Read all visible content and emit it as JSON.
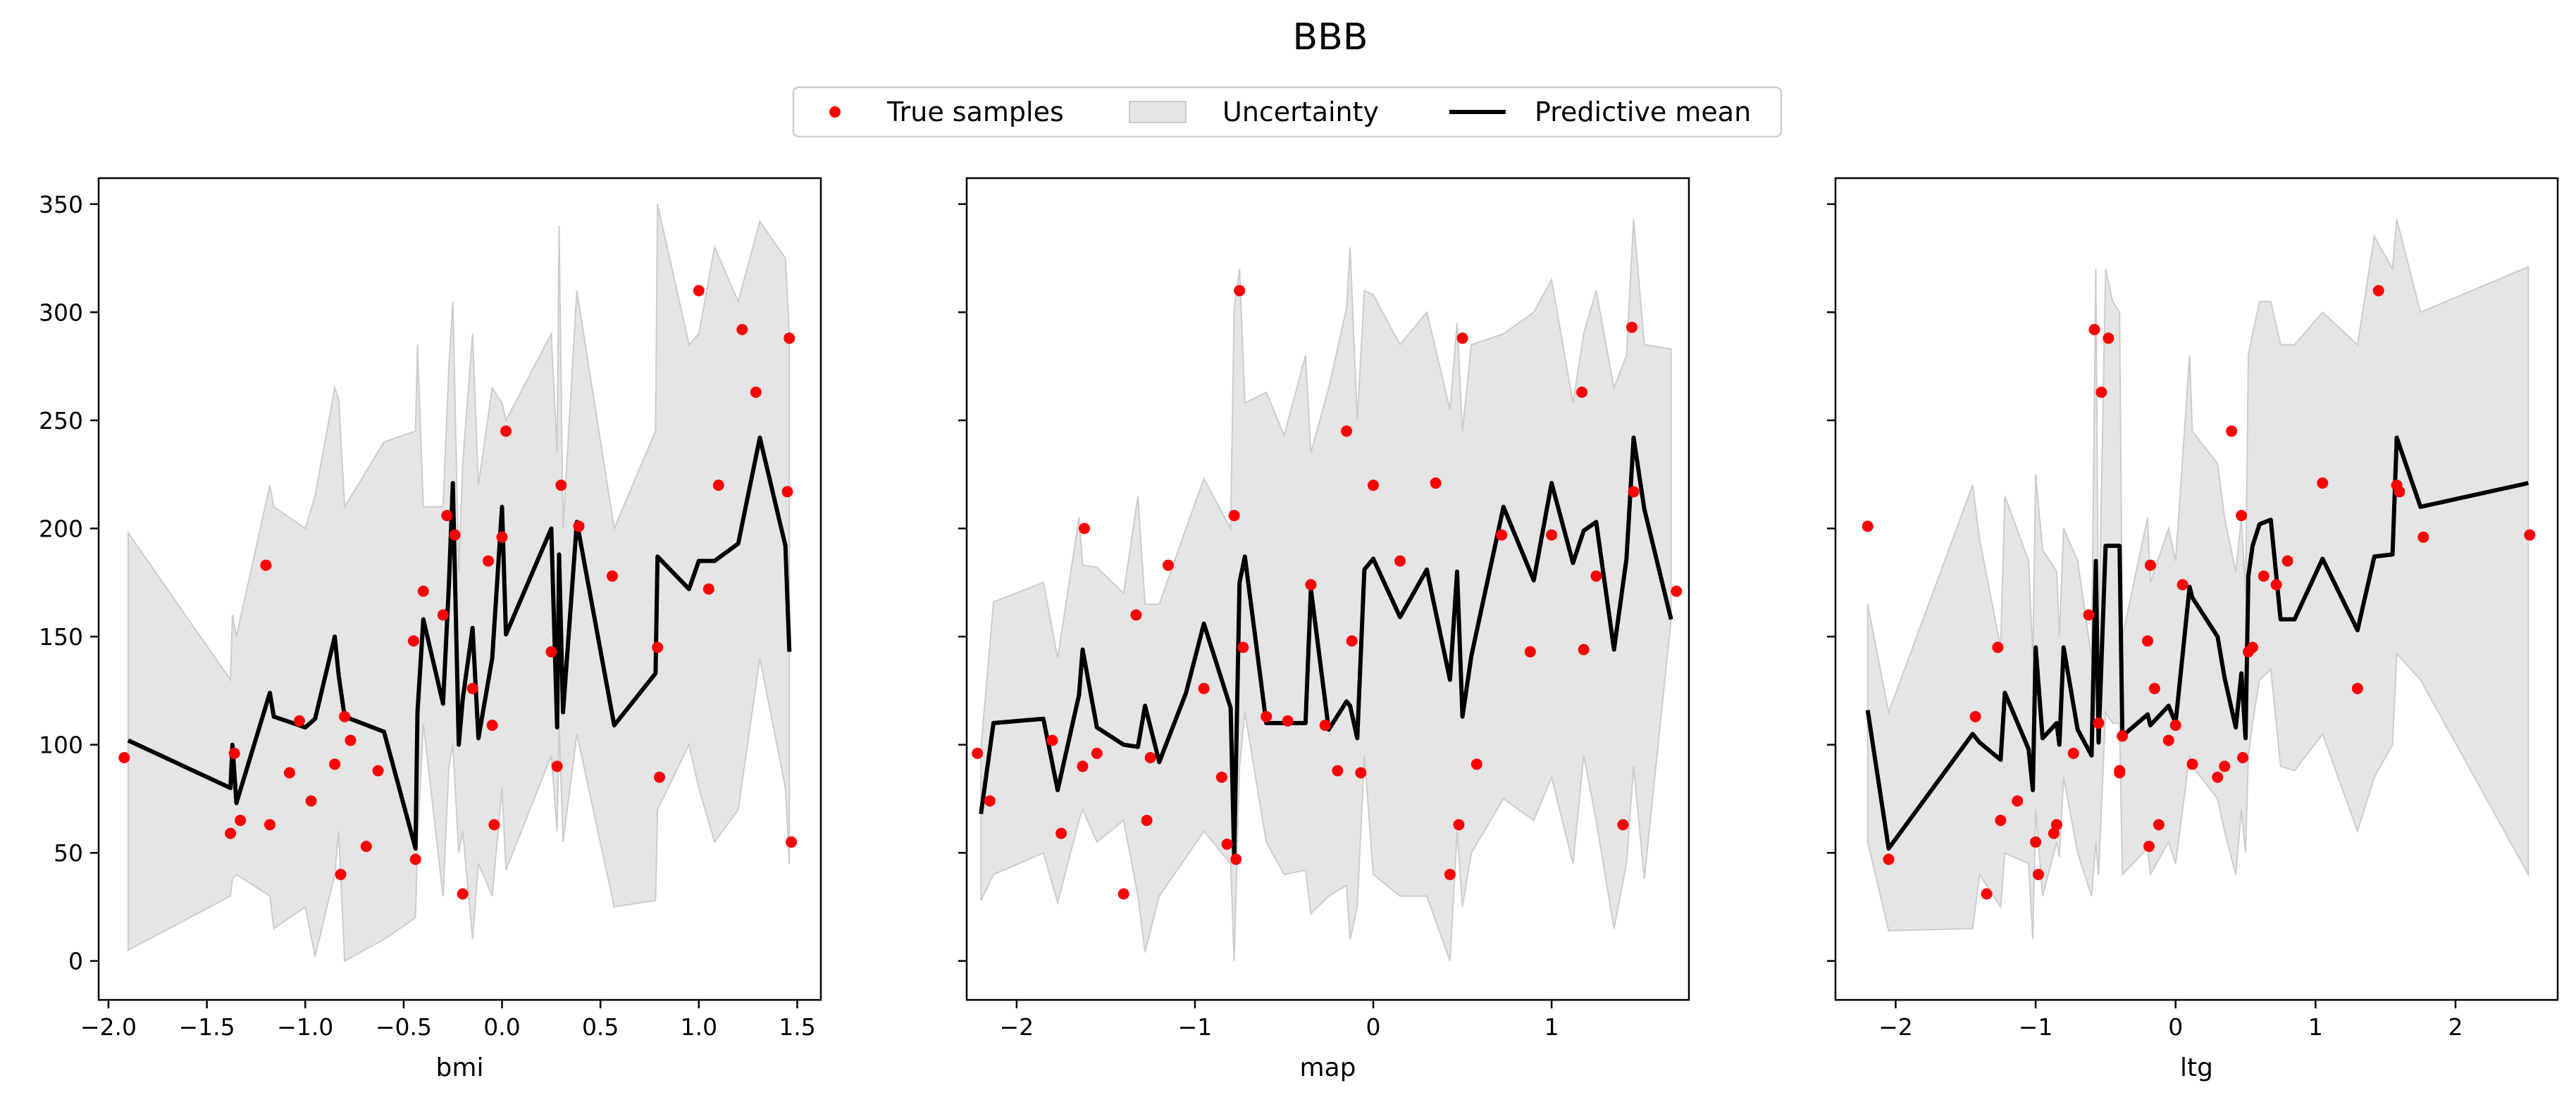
{
  "title": "BBB",
  "legend": {
    "items": [
      "True samples",
      "Uncertainty",
      "Predictive mean"
    ],
    "location": "upper-center"
  },
  "colors": {
    "samples": "#ff0000",
    "band_fill": "#e5e5e5",
    "band_edge": "#cccccc",
    "mean": "#000000"
  },
  "chart_data": [
    {
      "type": "line",
      "xlabel": "bmi",
      "xlim": [
        -2.05,
        1.62
      ],
      "ylim": [
        -18,
        362
      ],
      "xticks": [
        -2.0,
        -1.5,
        -1.0,
        -0.5,
        0.0,
        0.5,
        1.0,
        1.5
      ],
      "xtick_labels": [
        "−2.0",
        "−1.5",
        "−1.0",
        "−0.5",
        "0.0",
        "0.5",
        "1.0",
        "1.5"
      ],
      "yticks": [
        0,
        50,
        100,
        150,
        200,
        250,
        300,
        350
      ],
      "ytick_labels": [
        "0",
        "50",
        "100",
        "150",
        "200",
        "250",
        "300",
        "350"
      ],
      "series": [
        {
          "name": "Predictive mean",
          "x": [
            -1.9,
            -1.38,
            -1.37,
            -1.35,
            -1.18,
            -1.16,
            -1.0,
            -0.95,
            -0.85,
            -0.83,
            -0.8,
            -0.6,
            -0.44,
            -0.43,
            -0.4,
            -0.3,
            -0.27,
            -0.25,
            -0.22,
            -0.2,
            -0.15,
            -0.12,
            -0.05,
            0.0,
            0.02,
            0.25,
            0.28,
            0.29,
            0.31,
            0.38,
            0.57,
            0.78,
            0.79,
            0.95,
            1.0,
            1.08,
            1.2,
            1.31,
            1.44,
            1.46
          ],
          "y": [
            102,
            80,
            100,
            73,
            124,
            113,
            108,
            112,
            150,
            132,
            113,
            106,
            52,
            115,
            158,
            119,
            174,
            221,
            100,
            121,
            154,
            103,
            140,
            210,
            151,
            200,
            108,
            188,
            115,
            203,
            109,
            133,
            187,
            172,
            185,
            185,
            193,
            242,
            192,
            143
          ]
        },
        {
          "name": "Uncertainty",
          "x": [
            -1.9,
            -1.38,
            -1.37,
            -1.35,
            -1.18,
            -1.16,
            -1.0,
            -0.95,
            -0.85,
            -0.83,
            -0.8,
            -0.6,
            -0.44,
            -0.43,
            -0.4,
            -0.3,
            -0.27,
            -0.25,
            -0.22,
            -0.2,
            -0.15,
            -0.12,
            -0.05,
            0.0,
            0.02,
            0.25,
            0.28,
            0.29,
            0.31,
            0.38,
            0.57,
            0.78,
            0.79,
            0.95,
            1.0,
            1.08,
            1.2,
            1.31,
            1.44,
            1.46
          ],
          "lower": [
            5,
            30,
            38,
            40,
            30,
            15,
            25,
            2,
            40,
            60,
            0,
            10,
            20,
            55,
            110,
            30,
            90,
            100,
            50,
            60,
            10,
            45,
            30,
            80,
            42,
            95,
            60,
            110,
            55,
            105,
            25,
            28,
            70,
            100,
            80,
            55,
            70,
            140,
            80,
            45
          ],
          "upper": [
            198,
            130,
            160,
            150,
            220,
            210,
            200,
            215,
            265,
            260,
            210,
            240,
            245,
            285,
            210,
            210,
            275,
            305,
            180,
            230,
            290,
            220,
            265,
            258,
            250,
            290,
            235,
            340,
            200,
            310,
            200,
            245,
            350,
            285,
            290,
            330,
            305,
            342,
            325,
            290
          ]
        },
        {
          "name": "True samples",
          "x": [
            -1.92,
            -1.38,
            -1.36,
            -1.33,
            -1.2,
            -1.18,
            -1.08,
            -1.03,
            -0.97,
            -0.85,
            -0.82,
            -0.8,
            -0.77,
            -0.69,
            -0.63,
            -0.45,
            -0.44,
            -0.4,
            -0.3,
            -0.28,
            -0.24,
            -0.2,
            -0.15,
            -0.07,
            -0.05,
            -0.04,
            0.0,
            0.02,
            0.25,
            0.28,
            0.3,
            0.39,
            0.56,
            0.79,
            0.8,
            1.0,
            1.05,
            1.1,
            1.22,
            1.29,
            1.45,
            1.46,
            1.47
          ],
          "y": [
            94,
            59,
            96,
            65,
            183,
            63,
            87,
            111,
            74,
            91,
            40,
            113,
            102,
            53,
            88,
            148,
            47,
            171,
            160,
            206,
            197,
            31,
            126,
            185,
            109,
            63,
            196,
            245,
            143,
            90,
            220,
            201,
            178,
            145,
            85,
            310,
            172,
            220,
            292,
            263,
            217,
            288,
            55
          ]
        }
      ]
    },
    {
      "type": "line",
      "xlabel": "map",
      "xlim": [
        -2.28,
        1.77
      ],
      "ylim": [
        -18,
        362
      ],
      "xticks": [
        -2,
        -1,
        0,
        1
      ],
      "xtick_labels": [
        "−2",
        "−1",
        "0",
        "1"
      ],
      "yticks": [
        0,
        50,
        100,
        150,
        200,
        250,
        300,
        350
      ],
      "ytick_labels": [
        "",
        "",
        "",
        "",
        "",
        "",
        "",
        ""
      ],
      "series": [
        {
          "name": "Predictive mean",
          "x": [
            -2.2,
            -2.13,
            -1.85,
            -1.77,
            -1.65,
            -1.63,
            -1.55,
            -1.4,
            -1.32,
            -1.28,
            -1.2,
            -1.05,
            -0.95,
            -0.8,
            -0.78,
            -0.75,
            -0.72,
            -0.6,
            -0.5,
            -0.38,
            -0.35,
            -0.25,
            -0.15,
            -0.13,
            -0.09,
            -0.05,
            0.0,
            0.15,
            0.3,
            0.43,
            0.47,
            0.5,
            0.55,
            0.73,
            0.9,
            1.0,
            1.12,
            1.18,
            1.25,
            1.35,
            1.42,
            1.46,
            1.52,
            1.67
          ],
          "y": [
            68,
            110,
            112,
            79,
            123,
            144,
            108,
            100,
            99,
            118,
            92,
            124,
            156,
            117,
            48,
            175,
            187,
            110,
            110,
            110,
            172,
            107,
            120,
            118,
            103,
            181,
            186,
            159,
            181,
            130,
            180,
            113,
            141,
            210,
            176,
            221,
            184,
            199,
            203,
            144,
            186,
            242,
            209,
            158
          ]
        },
        {
          "name": "Uncertainty",
          "x": [
            -2.2,
            -2.13,
            -1.85,
            -1.77,
            -1.65,
            -1.63,
            -1.55,
            -1.4,
            -1.32,
            -1.28,
            -1.2,
            -1.05,
            -0.95,
            -0.8,
            -0.78,
            -0.75,
            -0.72,
            -0.6,
            -0.5,
            -0.38,
            -0.35,
            -0.25,
            -0.15,
            -0.13,
            -0.09,
            -0.05,
            0.0,
            0.15,
            0.3,
            0.43,
            0.47,
            0.5,
            0.55,
            0.73,
            0.9,
            1.0,
            1.12,
            1.18,
            1.25,
            1.35,
            1.42,
            1.46,
            1.52,
            1.67
          ],
          "lower": [
            28,
            40,
            50,
            27,
            65,
            70,
            55,
            65,
            30,
            4,
            30,
            48,
            60,
            45,
            0,
            90,
            115,
            55,
            40,
            42,
            22,
            30,
            35,
            10,
            25,
            95,
            40,
            30,
            30,
            0,
            60,
            25,
            50,
            75,
            65,
            85,
            45,
            95,
            65,
            15,
            45,
            90,
            38,
            158
          ],
          "upper": [
            98,
            166,
            175,
            140,
            205,
            183,
            182,
            170,
            215,
            165,
            165,
            200,
            223,
            200,
            302,
            320,
            258,
            263,
            243,
            280,
            235,
            265,
            302,
            330,
            250,
            310,
            308,
            285,
            300,
            255,
            295,
            245,
            285,
            290,
            300,
            315,
            258,
            290,
            310,
            265,
            280,
            343,
            285,
            283
          ]
        },
        {
          "name": "True samples",
          "x": [
            -2.22,
            -2.15,
            -1.8,
            -1.75,
            -1.63,
            -1.62,
            -1.55,
            -1.4,
            -1.33,
            -1.27,
            -1.25,
            -1.15,
            -0.95,
            -0.85,
            -0.82,
            -0.78,
            -0.77,
            -0.75,
            -0.73,
            -0.6,
            -0.48,
            -0.35,
            -0.27,
            -0.2,
            -0.15,
            -0.12,
            -0.07,
            0.0,
            0.15,
            0.35,
            0.43,
            0.48,
            0.5,
            0.58,
            0.72,
            0.88,
            1.0,
            1.17,
            1.18,
            1.25,
            1.4,
            1.45,
            1.46,
            1.7
          ],
          "y": [
            96,
            74,
            102,
            59,
            90,
            200,
            96,
            31,
            160,
            65,
            94,
            183,
            126,
            85,
            54,
            206,
            47,
            310,
            145,
            113,
            111,
            174,
            109,
            88,
            245,
            148,
            87,
            220,
            185,
            221,
            40,
            63,
            288,
            91,
            197,
            143,
            197,
            263,
            144,
            178,
            63,
            293,
            217,
            171
          ]
        }
      ]
    },
    {
      "type": "line",
      "xlabel": "ltg",
      "xlim": [
        -2.43,
        2.73
      ],
      "ylim": [
        -18,
        362
      ],
      "xticks": [
        -2,
        -1,
        0,
        1,
        2
      ],
      "xtick_labels": [
        "−2",
        "−1",
        "0",
        "1",
        "2"
      ],
      "yticks": [
        0,
        50,
        100,
        150,
        200,
        250,
        300,
        350
      ],
      "ytick_labels": [
        "",
        "",
        "",
        "",
        "",
        "",
        "",
        ""
      ],
      "series": [
        {
          "name": "Predictive mean",
          "x": [
            -2.2,
            -2.05,
            -1.45,
            -1.4,
            -1.25,
            -1.22,
            -1.05,
            -1.02,
            -1.0,
            -0.95,
            -0.85,
            -0.83,
            -0.8,
            -0.7,
            -0.6,
            -0.57,
            -0.55,
            -0.5,
            -0.45,
            -0.4,
            -0.38,
            -0.2,
            -0.18,
            -0.05,
            0.0,
            0.1,
            0.12,
            0.3,
            0.35,
            0.43,
            0.47,
            0.5,
            0.52,
            0.55,
            0.6,
            0.68,
            0.75,
            0.85,
            1.05,
            1.3,
            1.42,
            1.55,
            1.58,
            1.75,
            2.52
          ],
          "y": [
            116,
            52,
            105,
            101,
            93,
            124,
            98,
            79,
            145,
            103,
            110,
            100,
            145,
            107,
            95,
            185,
            101,
            192,
            192,
            192,
            104,
            114,
            109,
            118,
            110,
            173,
            168,
            150,
            131,
            108,
            133,
            103,
            178,
            192,
            202,
            204,
            158,
            158,
            186,
            153,
            187,
            188,
            242,
            210,
            221
          ]
        },
        {
          "name": "Uncertainty",
          "x": [
            -2.2,
            -2.05,
            -1.45,
            -1.4,
            -1.25,
            -1.22,
            -1.05,
            -1.02,
            -1.0,
            -0.95,
            -0.85,
            -0.83,
            -0.8,
            -0.7,
            -0.6,
            -0.57,
            -0.55,
            -0.5,
            -0.45,
            -0.4,
            -0.38,
            -0.2,
            -0.18,
            -0.05,
            0.0,
            0.1,
            0.12,
            0.3,
            0.35,
            0.43,
            0.47,
            0.5,
            0.52,
            0.55,
            0.6,
            0.68,
            0.75,
            0.85,
            1.05,
            1.3,
            1.42,
            1.55,
            1.58,
            1.75,
            2.52
          ],
          "lower": [
            55,
            14,
            15,
            40,
            25,
            50,
            45,
            10,
            70,
            30,
            55,
            48,
            85,
            50,
            30,
            55,
            40,
            115,
            110,
            110,
            40,
            52,
            40,
            55,
            45,
            95,
            90,
            75,
            60,
            40,
            70,
            50,
            95,
            110,
            130,
            135,
            90,
            88,
            105,
            60,
            85,
            100,
            142,
            130,
            40
          ],
          "upper": [
            165,
            115,
            220,
            195,
            145,
            215,
            185,
            140,
            225,
            190,
            180,
            150,
            200,
            185,
            140,
            320,
            145,
            320,
            305,
            300,
            150,
            205,
            175,
            200,
            185,
            280,
            245,
            230,
            205,
            180,
            205,
            170,
            280,
            290,
            305,
            305,
            285,
            285,
            300,
            285,
            335,
            320,
            343,
            300,
            321
          ]
        },
        {
          "name": "True samples",
          "x": [
            -2.2,
            -2.05,
            -1.43,
            -1.35,
            -1.27,
            -1.25,
            -1.13,
            -1.0,
            -0.98,
            -0.87,
            -0.85,
            -0.73,
            -0.62,
            -0.58,
            -0.55,
            -0.53,
            -0.48,
            -0.4,
            -0.4,
            -0.38,
            -0.2,
            -0.19,
            -0.18,
            -0.15,
            -0.12,
            -0.05,
            0.0,
            0.05,
            0.12,
            0.3,
            0.35,
            0.4,
            0.47,
            0.48,
            0.52,
            0.55,
            0.63,
            0.72,
            0.8,
            1.05,
            1.3,
            1.45,
            1.58,
            1.6,
            1.77,
            2.53
          ],
          "y": [
            201,
            47,
            113,
            31,
            145,
            65,
            74,
            55,
            40,
            59,
            63,
            96,
            160,
            292,
            110,
            263,
            288,
            87,
            88,
            104,
            148,
            53,
            183,
            126,
            63,
            102,
            109,
            174,
            91,
            85,
            90,
            245,
            206,
            94,
            143,
            145,
            178,
            174,
            185,
            221,
            126,
            310,
            220,
            217,
            196,
            197
          ]
        }
      ]
    }
  ]
}
